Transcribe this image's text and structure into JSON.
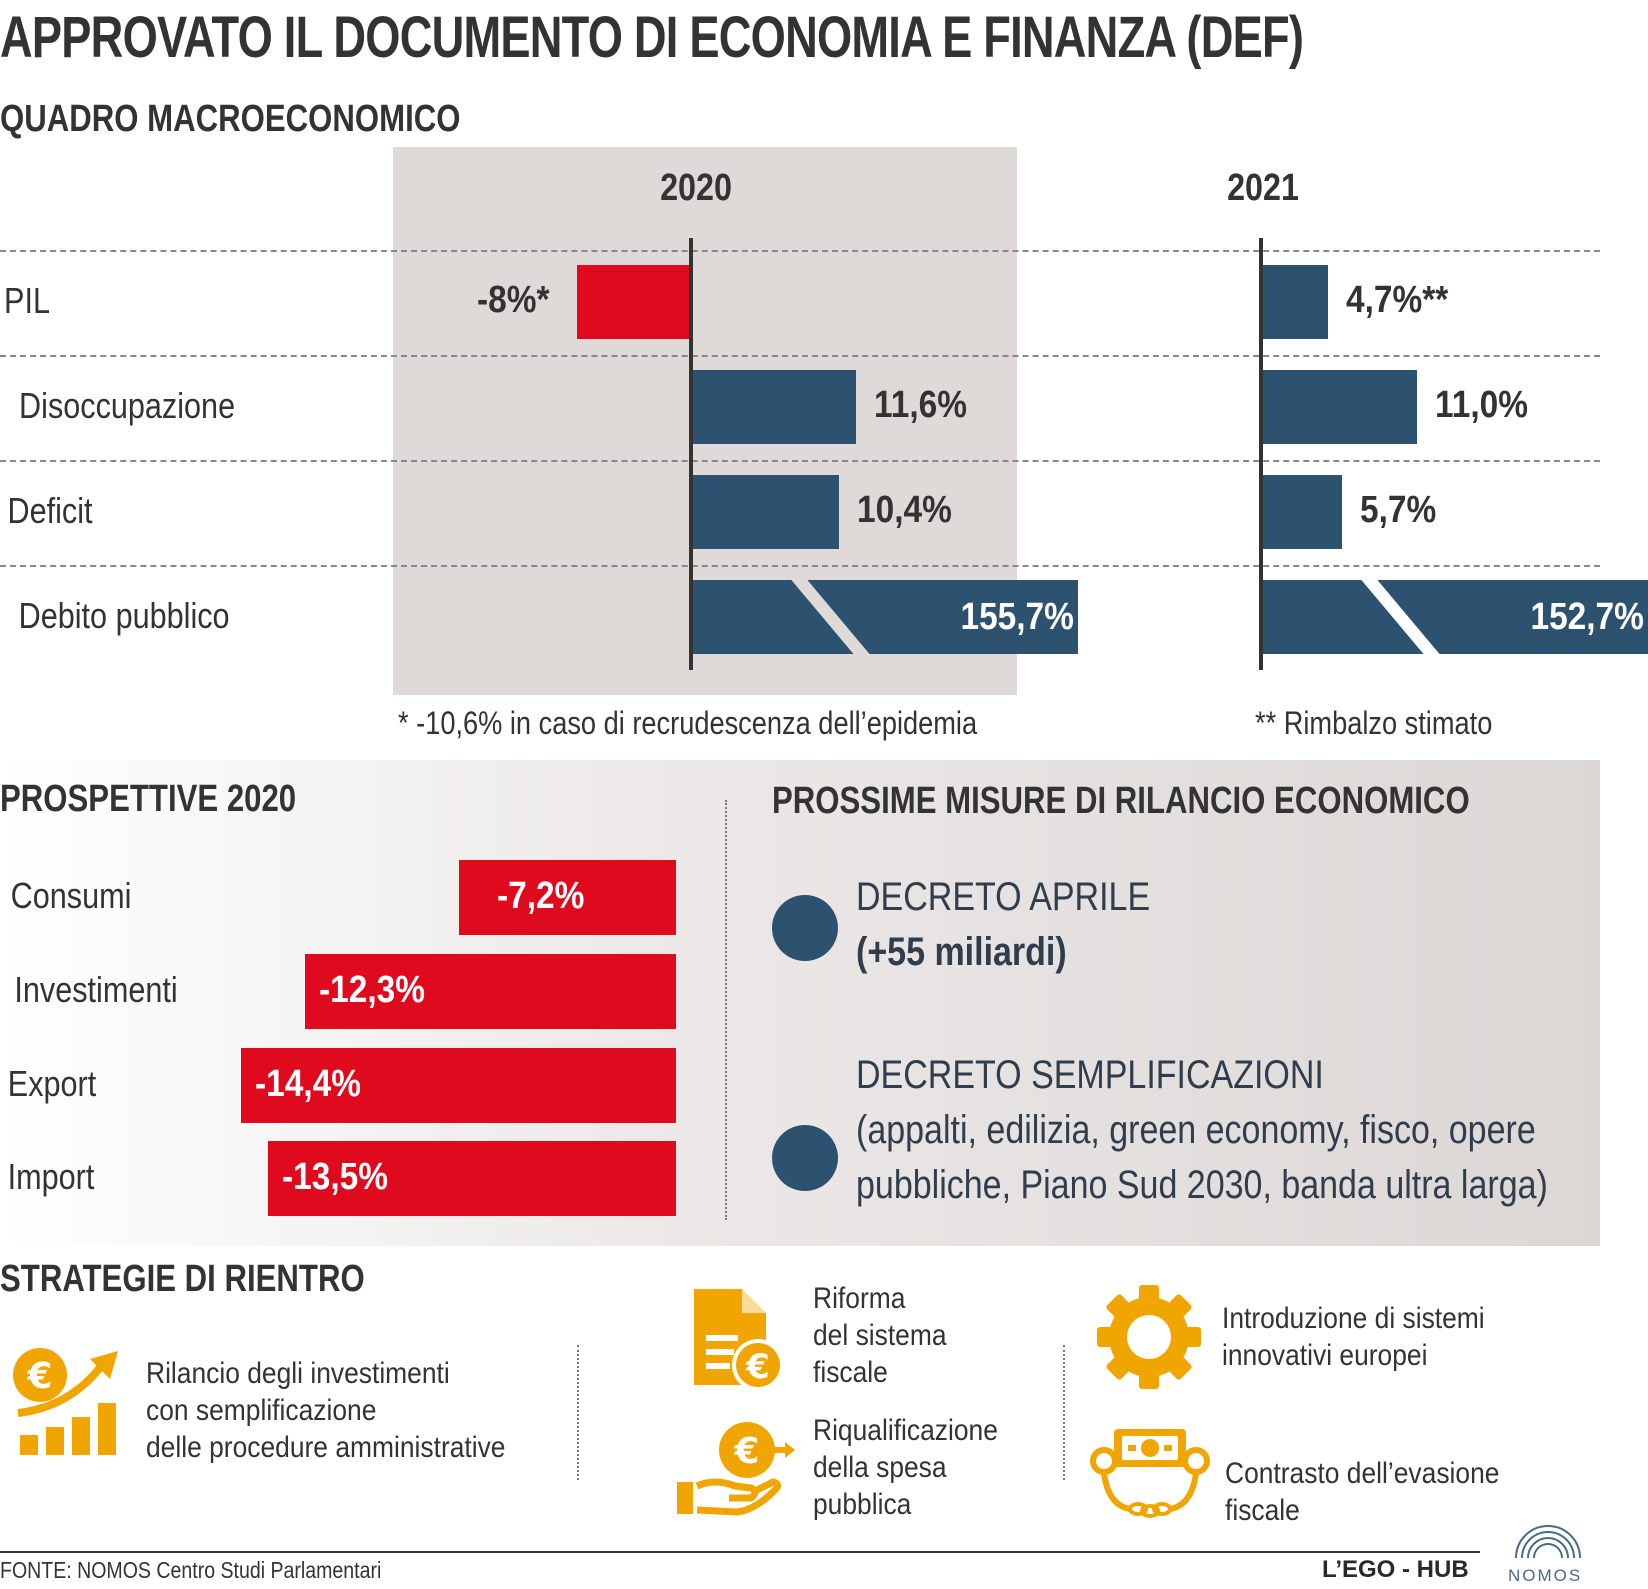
{
  "title": "APPROVATO IL DOCUMENTO DI ECONOMIA E FINANZA (DEF)",
  "subtitle": "QUADRO MACROECONOMICO",
  "chart_data": [
    {
      "type": "bar",
      "orientation": "horizontal",
      "categories": [
        "PIL",
        "Disoccupazione",
        "Deficit",
        "Debito pubblico"
      ],
      "series": [
        {
          "name": "2020",
          "values": [
            -8,
            11.6,
            10.4,
            155.7
          ],
          "labels": [
            "-8%*",
            "11,6%",
            "10,4%",
            "155,7%"
          ]
        },
        {
          "name": "2021",
          "values": [
            4.7,
            11.0,
            5.7,
            152.7
          ],
          "labels": [
            "4,7%**",
            "11,0%",
            "5,7%",
            "152,7%"
          ]
        }
      ],
      "axis_break_on": "Debito pubblico",
      "notes": [
        "* -10,6% in caso di recrudescenza dell’epidemia",
        "** Rimbalzo stimato"
      ],
      "colors": {
        "negative": "#e00a1e",
        "positive": "#2c5270",
        "highlight_bg": "#dfdad7"
      }
    },
    {
      "type": "bar",
      "orientation": "horizontal",
      "title": "PROSPETTIVE 2020",
      "categories": [
        "Consumi",
        "Investimenti",
        "Export",
        "Import"
      ],
      "values": [
        -7.2,
        -12.3,
        -14.4,
        -13.5
      ],
      "labels": [
        "-7,2%",
        "-12,3%",
        "-14,4%",
        "-13,5%"
      ],
      "colors": {
        "bar": "#e00a1e"
      }
    }
  ],
  "misure": {
    "title": "PROSSIME MISURE DI RILANCIO ECONOMICO",
    "items": [
      {
        "line1": "DECRETO APRILE",
        "line2": "(+55 miliardi)"
      },
      {
        "line1": "DECRETO SEMPLIFICAZIONI",
        "line2": "(appalti, edilizia, green economy, fisco, opere",
        "line3": "pubbliche, Piano Sud 2030, banda ultra larga)"
      }
    ]
  },
  "strategie": {
    "title": "STRATEGIE DI RIENTRO",
    "items": [
      {
        "icon": "euro-growth-chart-icon",
        "text": "Rilancio degli investimenti\ncon semplificazione\ndelle procedure amministrative"
      },
      {
        "icon": "tax-document-euro-icon",
        "text": "Riforma\ndel sistema\nfiscale"
      },
      {
        "icon": "hand-euro-coin-icon",
        "text": "Riqualificazione\ndella spesa\npubblica"
      },
      {
        "icon": "gear-icon",
        "text": "Introduzione di sistemi\ninnovativi europei"
      },
      {
        "icon": "chained-banknote-icon",
        "text": "Contrasto dell’evasione fiscale"
      }
    ],
    "icon_color": "#f0a500"
  },
  "footer": {
    "source": "FONTE: NOMOS Centro Studi Parlamentari",
    "credit": "L’EGO - HUB",
    "logo_text": "NOMOS"
  }
}
